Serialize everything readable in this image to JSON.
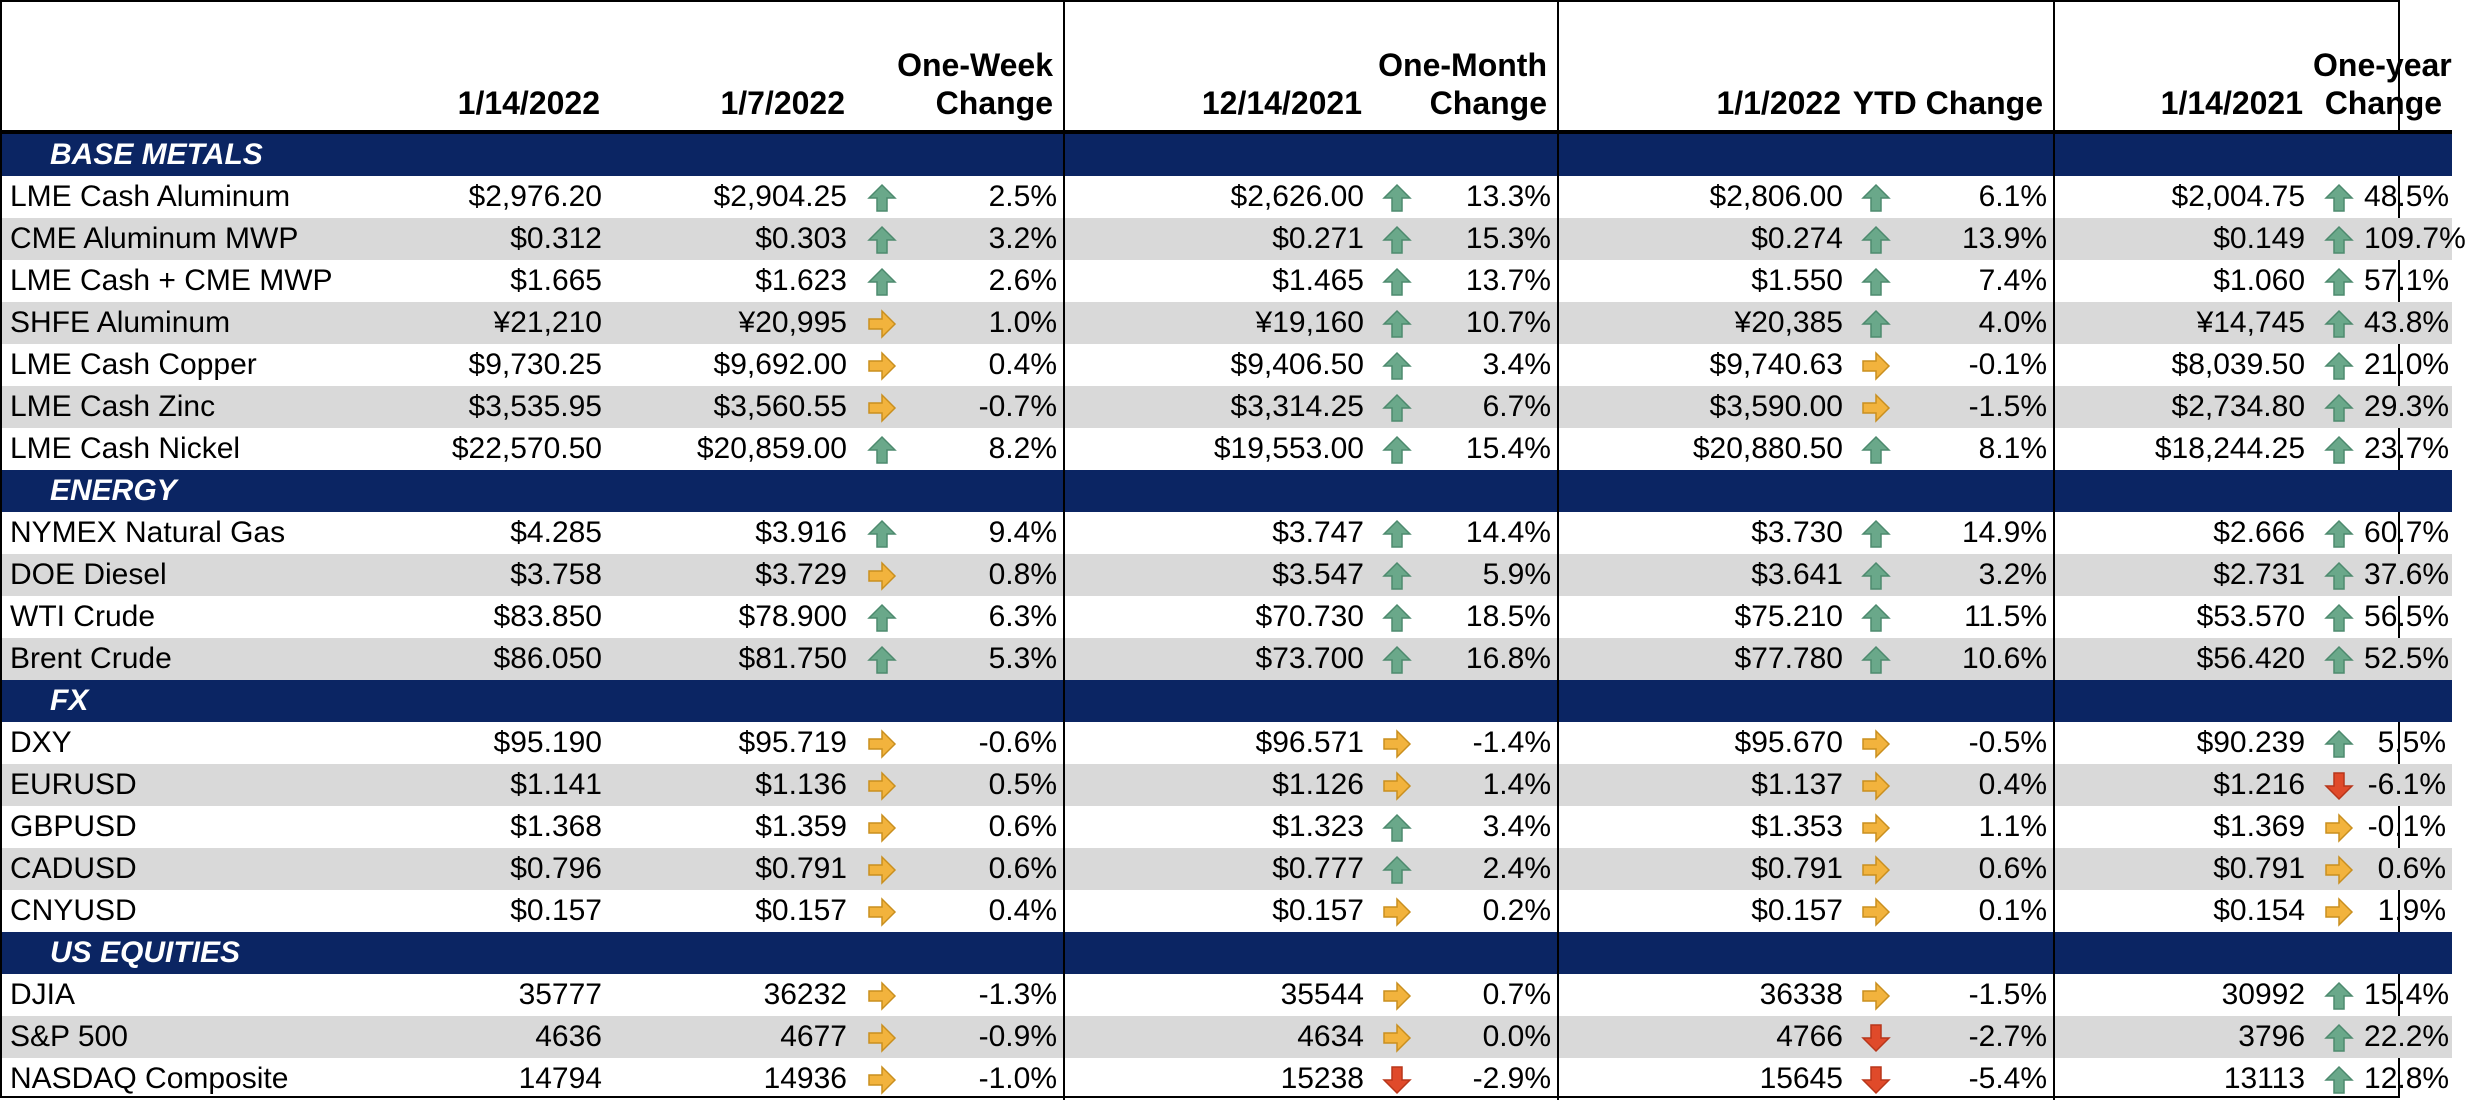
{
  "headers": {
    "c1": "1/14/2022",
    "c2": "1/7/2022",
    "week": [
      "One-Week",
      "Change"
    ],
    "c3": "12/14/2021",
    "month": [
      "One-Month",
      "Change"
    ],
    "c4": "1/1/2022",
    "ytd": "YTD Change",
    "c5": "1/14/2021",
    "year": [
      "One-year",
      "Change"
    ]
  },
  "colors": {
    "section_bg": "#0b2563",
    "alt_row": "#d9d9d9",
    "up": "#6aa88a",
    "flat": "#f2b33d",
    "down": "#e04a2a"
  },
  "sections": [
    {
      "name": "BASE METALS",
      "rows": [
        {
          "name": "LME Cash Aluminum",
          "v1": "$2,976.20",
          "v2": "$2,904.25",
          "a1": "up",
          "p1": "2.5%",
          "v3": "$2,626.00",
          "a2": "up",
          "p2": "13.3%",
          "v4": "$2,806.00",
          "a3": "up",
          "p3": "6.1%",
          "v5": "$2,004.75",
          "a4": "up",
          "p4": "48.5%"
        },
        {
          "name": "CME Aluminum MWP",
          "v1": "$0.312",
          "v2": "$0.303",
          "a1": "up",
          "p1": "3.2%",
          "v3": "$0.271",
          "a2": "up",
          "p2": "15.3%",
          "v4": "$0.274",
          "a3": "up",
          "p3": "13.9%",
          "v5": "$0.149",
          "a4": "up",
          "p4": "109.7%"
        },
        {
          "name": "LME Cash + CME MWP",
          "v1": "$1.665",
          "v2": "$1.623",
          "a1": "up",
          "p1": "2.6%",
          "v3": "$1.465",
          "a2": "up",
          "p2": "13.7%",
          "v4": "$1.550",
          "a3": "up",
          "p3": "7.4%",
          "v5": "$1.060",
          "a4": "up",
          "p4": "57.1%"
        },
        {
          "name": "SHFE Aluminum",
          "v1": "¥21,210",
          "v2": "¥20,995",
          "a1": "right",
          "p1": "1.0%",
          "v3": "¥19,160",
          "a2": "up",
          "p2": "10.7%",
          "v4": "¥20,385",
          "a3": "up",
          "p3": "4.0%",
          "v5": "¥14,745",
          "a4": "up",
          "p4": "43.8%"
        },
        {
          "name": "LME Cash Copper",
          "v1": "$9,730.25",
          "v2": "$9,692.00",
          "a1": "right",
          "p1": "0.4%",
          "v3": "$9,406.50",
          "a2": "up",
          "p2": "3.4%",
          "v4": "$9,740.63",
          "a3": "right",
          "p3": "-0.1%",
          "v5": "$8,039.50",
          "a4": "up",
          "p4": "21.0%"
        },
        {
          "name": "LME Cash Zinc",
          "v1": "$3,535.95",
          "v2": "$3,560.55",
          "a1": "right",
          "p1": "-0.7%",
          "v3": "$3,314.25",
          "a2": "up",
          "p2": "6.7%",
          "v4": "$3,590.00",
          "a3": "right",
          "p3": "-1.5%",
          "v5": "$2,734.80",
          "a4": "up",
          "p4": "29.3%"
        },
        {
          "name": "LME Cash Nickel",
          "v1": "$22,570.50",
          "v2": "$20,859.00",
          "a1": "up",
          "p1": "8.2%",
          "v3": "$19,553.00",
          "a2": "up",
          "p2": "15.4%",
          "v4": "$20,880.50",
          "a3": "up",
          "p3": "8.1%",
          "v5": "$18,244.25",
          "a4": "up",
          "p4": "23.7%"
        }
      ]
    },
    {
      "name": "ENERGY",
      "rows": [
        {
          "name": "NYMEX Natural Gas",
          "v1": "$4.285",
          "v2": "$3.916",
          "a1": "up",
          "p1": "9.4%",
          "v3": "$3.747",
          "a2": "up",
          "p2": "14.4%",
          "v4": "$3.730",
          "a3": "up",
          "p3": "14.9%",
          "v5": "$2.666",
          "a4": "up",
          "p4": "60.7%"
        },
        {
          "name": "DOE Diesel",
          "v1": "$3.758",
          "v2": "$3.729",
          "a1": "right",
          "p1": "0.8%",
          "v3": "$3.547",
          "a2": "up",
          "p2": "5.9%",
          "v4": "$3.641",
          "a3": "up",
          "p3": "3.2%",
          "v5": "$2.731",
          "a4": "up",
          "p4": "37.6%"
        },
        {
          "name": "WTI Crude",
          "v1": "$83.850",
          "v2": "$78.900",
          "a1": "up",
          "p1": "6.3%",
          "v3": "$70.730",
          "a2": "up",
          "p2": "18.5%",
          "v4": "$75.210",
          "a3": "up",
          "p3": "11.5%",
          "v5": "$53.570",
          "a4": "up",
          "p4": "56.5%"
        },
        {
          "name": "Brent Crude",
          "v1": "$86.050",
          "v2": "$81.750",
          "a1": "up",
          "p1": "5.3%",
          "v3": "$73.700",
          "a2": "up",
          "p2": "16.8%",
          "v4": "$77.780",
          "a3": "up",
          "p3": "10.6%",
          "v5": "$56.420",
          "a4": "up",
          "p4": "52.5%"
        }
      ]
    },
    {
      "name": "FX",
      "rows": [
        {
          "name": "DXY",
          "v1": "$95.190",
          "v2": "$95.719",
          "a1": "right",
          "p1": "-0.6%",
          "v3": "$96.571",
          "a2": "right",
          "p2": "-1.4%",
          "v4": "$95.670",
          "a3": "right",
          "p3": "-0.5%",
          "v5": "$90.239",
          "a4": "up",
          "p4": "5.5%"
        },
        {
          "name": "EURUSD",
          "v1": "$1.141",
          "v2": "$1.136",
          "a1": "right",
          "p1": "0.5%",
          "v3": "$1.126",
          "a2": "right",
          "p2": "1.4%",
          "v4": "$1.137",
          "a3": "right",
          "p3": "0.4%",
          "v5": "$1.216",
          "a4": "down",
          "p4": "-6.1%"
        },
        {
          "name": "GBPUSD",
          "v1": "$1.368",
          "v2": "$1.359",
          "a1": "right",
          "p1": "0.6%",
          "v3": "$1.323",
          "a2": "up",
          "p2": "3.4%",
          "v4": "$1.353",
          "a3": "right",
          "p3": "1.1%",
          "v5": "$1.369",
          "a4": "right",
          "p4": "-0.1%"
        },
        {
          "name": "CADUSD",
          "v1": "$0.796",
          "v2": "$0.791",
          "a1": "right",
          "p1": "0.6%",
          "v3": "$0.777",
          "a2": "up",
          "p2": "2.4%",
          "v4": "$0.791",
          "a3": "right",
          "p3": "0.6%",
          "v5": "$0.791",
          "a4": "right",
          "p4": "0.6%"
        },
        {
          "name": "CNYUSD",
          "v1": "$0.157",
          "v2": "$0.157",
          "a1": "right",
          "p1": "0.4%",
          "v3": "$0.157",
          "a2": "right",
          "p2": "0.2%",
          "v4": "$0.157",
          "a3": "right",
          "p3": "0.1%",
          "v5": "$0.154",
          "a4": "right",
          "p4": "1.9%"
        }
      ]
    },
    {
      "name": "US EQUITIES",
      "rows": [
        {
          "name": "DJIA",
          "v1": "35777",
          "v2": "36232",
          "a1": "right",
          "p1": "-1.3%",
          "v3": "35544",
          "a2": "right",
          "p2": "0.7%",
          "v4": "36338",
          "a3": "right",
          "p3": "-1.5%",
          "v5": "30992",
          "a4": "up",
          "p4": "15.4%"
        },
        {
          "name": "S&P 500",
          "v1": "4636",
          "v2": "4677",
          "a1": "right",
          "p1": "-0.9%",
          "v3": "4634",
          "a2": "right",
          "p2": "0.0%",
          "v4": "4766",
          "a3": "down",
          "p3": "-2.7%",
          "v5": "3796",
          "a4": "up",
          "p4": "22.2%"
        },
        {
          "name": "NASDAQ Composite",
          "v1": "14794",
          "v2": "14936",
          "a1": "right",
          "p1": "-1.0%",
          "v3": "15238",
          "a2": "down",
          "p2": "-2.9%",
          "v4": "15645",
          "a3": "down",
          "p3": "-5.4%",
          "v5": "13113",
          "a4": "up",
          "p4": "12.8%"
        }
      ]
    }
  ]
}
